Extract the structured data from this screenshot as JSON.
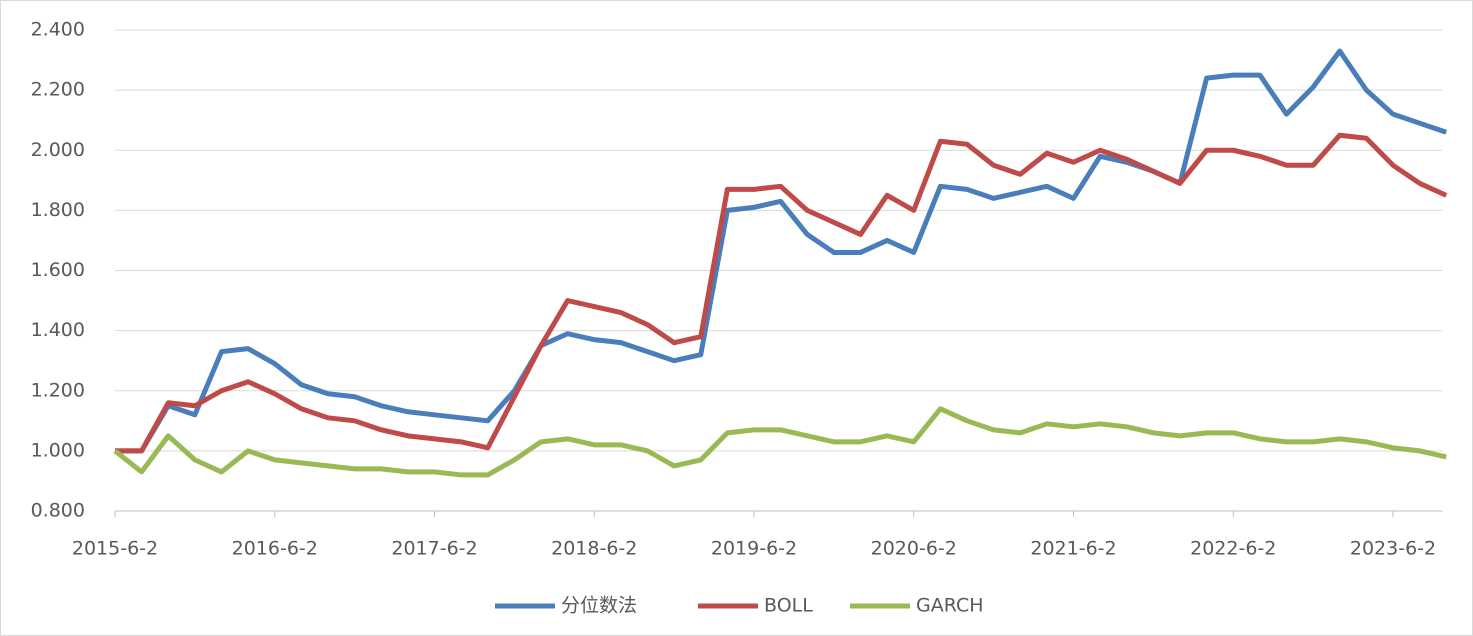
{
  "chart_data": {
    "type": "line",
    "categories": [
      "2015-6-2",
      null,
      null,
      null,
      null,
      null,
      "2016-6-2",
      null,
      null,
      null,
      null,
      null,
      "2017-6-2",
      null,
      null,
      null,
      null,
      null,
      "2018-6-2",
      null,
      null,
      null,
      null,
      null,
      "2019-6-2",
      null,
      null,
      null,
      null,
      null,
      "2020-6-2",
      null,
      null,
      null,
      null,
      null,
      "2021-6-2",
      null,
      null,
      null,
      null,
      null,
      "2022-6-2",
      null,
      null,
      null,
      null,
      null,
      "2023-6-2",
      null,
      null
    ],
    "series": [
      {
        "name": "分位数法",
        "color": "#4a7ebb",
        "values": [
          1.0,
          1.0,
          1.15,
          1.12,
          1.33,
          1.34,
          1.29,
          1.22,
          1.19,
          1.18,
          1.15,
          1.13,
          1.12,
          1.11,
          1.1,
          1.2,
          1.35,
          1.39,
          1.37,
          1.36,
          1.33,
          1.3,
          1.32,
          1.8,
          1.81,
          1.83,
          1.72,
          1.66,
          1.66,
          1.7,
          1.66,
          1.88,
          1.87,
          1.84,
          1.86,
          1.88,
          1.84,
          1.98,
          1.96,
          1.93,
          1.89,
          2.24,
          2.25,
          2.25,
          2.12,
          2.21,
          2.33,
          2.2,
          2.12,
          2.09,
          2.06
        ]
      },
      {
        "name": "BOLL",
        "color": "#be4b48",
        "values": [
          1.0,
          1.0,
          1.16,
          1.15,
          1.2,
          1.23,
          1.19,
          1.14,
          1.11,
          1.1,
          1.07,
          1.05,
          1.04,
          1.03,
          1.01,
          1.18,
          1.35,
          1.5,
          1.48,
          1.46,
          1.42,
          1.36,
          1.38,
          1.87,
          1.87,
          1.88,
          1.8,
          1.76,
          1.72,
          1.85,
          1.8,
          2.03,
          2.02,
          1.95,
          1.92,
          1.99,
          1.96,
          2.0,
          1.97,
          1.93,
          1.89,
          2.0,
          2.0,
          1.98,
          1.95,
          1.95,
          2.05,
          2.04,
          1.95,
          1.89,
          1.85
        ]
      },
      {
        "name": "GARCH",
        "color": "#98b954",
        "values": [
          1.0,
          0.93,
          1.05,
          0.97,
          0.93,
          1.0,
          0.97,
          0.96,
          0.95,
          0.94,
          0.94,
          0.93,
          0.93,
          0.92,
          0.92,
          0.97,
          1.03,
          1.04,
          1.02,
          1.02,
          1.0,
          0.95,
          0.97,
          1.06,
          1.07,
          1.07,
          1.05,
          1.03,
          1.03,
          1.05,
          1.03,
          1.14,
          1.1,
          1.07,
          1.06,
          1.09,
          1.08,
          1.09,
          1.08,
          1.06,
          1.05,
          1.06,
          1.06,
          1.04,
          1.03,
          1.03,
          1.04,
          1.03,
          1.01,
          1.0,
          0.98
        ]
      }
    ],
    "ylim": [
      0.8,
      2.4
    ],
    "yticks": [
      {
        "value": 0.8,
        "label": "0.800"
      },
      {
        "value": 1.0,
        "label": "1.000"
      },
      {
        "value": 1.2,
        "label": "1.200"
      },
      {
        "value": 1.4,
        "label": "1.400"
      },
      {
        "value": 1.6,
        "label": "1.600"
      },
      {
        "value": 1.8,
        "label": "1.800"
      },
      {
        "value": 2.0,
        "label": "2.000"
      },
      {
        "value": 2.2,
        "label": "2.200"
      },
      {
        "value": 2.4,
        "label": "2.400"
      }
    ],
    "grid": true,
    "legend": "bottom"
  }
}
